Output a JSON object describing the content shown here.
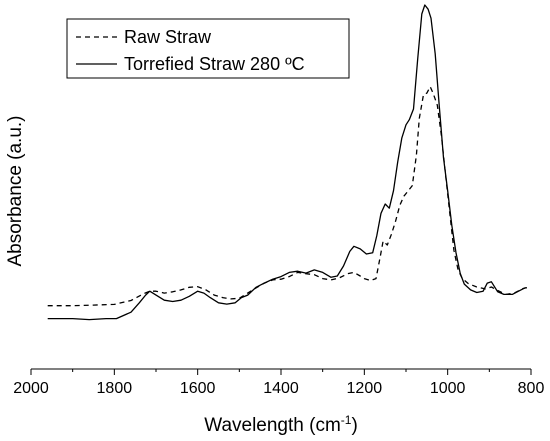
{
  "chart_data": {
    "type": "line",
    "title": "",
    "xlabel": "Wavelength (cm",
    "xlabel_sup": "-1",
    "xlabel_close": ")",
    "ylabel": "Absorbance (a.u.)",
    "xlim": [
      2000,
      800
    ],
    "x_reversed": true,
    "ylim": [
      0,
      1
    ],
    "y_ticks_shown": false,
    "grid": false,
    "legend_position": "top-left",
    "x_ticks": [
      2000,
      1800,
      1600,
      1400,
      1200,
      1000,
      800
    ],
    "x_tick_labels": [
      "2000",
      "1800",
      "1600",
      "1400",
      "1200",
      "1000",
      "800"
    ],
    "series": [
      {
        "name": "Raw Straw",
        "line_style": "dashed",
        "color": "#000000",
        "points": [
          [
            1960,
            0.069
          ],
          [
            1900,
            0.069
          ],
          [
            1850,
            0.071
          ],
          [
            1800,
            0.073
          ],
          [
            1760,
            0.085
          ],
          [
            1730,
            0.106
          ],
          [
            1715,
            0.114
          ],
          [
            1700,
            0.114
          ],
          [
            1680,
            0.108
          ],
          [
            1660,
            0.112
          ],
          [
            1640,
            0.118
          ],
          [
            1620,
            0.126
          ],
          [
            1600,
            0.128
          ],
          [
            1580,
            0.118
          ],
          [
            1560,
            0.102
          ],
          [
            1540,
            0.094
          ],
          [
            1520,
            0.09
          ],
          [
            1500,
            0.092
          ],
          [
            1480,
            0.108
          ],
          [
            1460,
            0.124
          ],
          [
            1440,
            0.139
          ],
          [
            1420,
            0.149
          ],
          [
            1400,
            0.151
          ],
          [
            1380,
            0.159
          ],
          [
            1360,
            0.172
          ],
          [
            1340,
            0.168
          ],
          [
            1320,
            0.165
          ],
          [
            1300,
            0.153
          ],
          [
            1280,
            0.149
          ],
          [
            1260,
            0.155
          ],
          [
            1240,
            0.168
          ],
          [
            1225,
            0.172
          ],
          [
            1210,
            0.161
          ],
          [
            1200,
            0.153
          ],
          [
            1185,
            0.147
          ],
          [
            1172,
            0.153
          ],
          [
            1162,
            0.22
          ],
          [
            1155,
            0.269
          ],
          [
            1145,
            0.257
          ],
          [
            1135,
            0.29
          ],
          [
            1125,
            0.331
          ],
          [
            1115,
            0.38
          ],
          [
            1105,
            0.408
          ],
          [
            1095,
            0.424
          ],
          [
            1085,
            0.441
          ],
          [
            1075,
            0.535
          ],
          [
            1068,
            0.649
          ],
          [
            1058,
            0.723
          ],
          [
            1050,
            0.727
          ],
          [
            1042,
            0.747
          ],
          [
            1035,
            0.727
          ],
          [
            1025,
            0.69
          ],
          [
            1015,
            0.596
          ],
          [
            1005,
            0.473
          ],
          [
            995,
            0.355
          ],
          [
            985,
            0.241
          ],
          [
            975,
            0.18
          ],
          [
            965,
            0.153
          ],
          [
            950,
            0.137
          ],
          [
            930,
            0.127
          ],
          [
            910,
            0.121
          ],
          [
            895,
            0.127
          ],
          [
            880,
            0.116
          ],
          [
            860,
            0.104
          ],
          [
            840,
            0.108
          ],
          [
            820,
            0.122
          ],
          [
            810,
            0.125
          ]
        ]
      },
      {
        "name": "Torrefied Straw 280 ºC",
        "line_style": "solid",
        "color": "#000000",
        "points": [
          [
            1960,
            0.029
          ],
          [
            1900,
            0.029
          ],
          [
            1860,
            0.026
          ],
          [
            1820,
            0.029
          ],
          [
            1795,
            0.029
          ],
          [
            1760,
            0.049
          ],
          [
            1740,
            0.078
          ],
          [
            1725,
            0.102
          ],
          [
            1715,
            0.114
          ],
          [
            1700,
            0.102
          ],
          [
            1680,
            0.086
          ],
          [
            1660,
            0.082
          ],
          [
            1640,
            0.086
          ],
          [
            1620,
            0.098
          ],
          [
            1600,
            0.114
          ],
          [
            1585,
            0.108
          ],
          [
            1570,
            0.094
          ],
          [
            1550,
            0.078
          ],
          [
            1530,
            0.074
          ],
          [
            1510,
            0.078
          ],
          [
            1495,
            0.094
          ],
          [
            1480,
            0.102
          ],
          [
            1460,
            0.126
          ],
          [
            1440,
            0.139
          ],
          [
            1420,
            0.151
          ],
          [
            1400,
            0.159
          ],
          [
            1380,
            0.172
          ],
          [
            1360,
            0.176
          ],
          [
            1340,
            0.17
          ],
          [
            1320,
            0.18
          ],
          [
            1300,
            0.172
          ],
          [
            1280,
            0.157
          ],
          [
            1265,
            0.161
          ],
          [
            1250,
            0.192
          ],
          [
            1235,
            0.237
          ],
          [
            1225,
            0.253
          ],
          [
            1210,
            0.245
          ],
          [
            1195,
            0.229
          ],
          [
            1180,
            0.233
          ],
          [
            1170,
            0.286
          ],
          [
            1160,
            0.355
          ],
          [
            1150,
            0.384
          ],
          [
            1140,
            0.371
          ],
          [
            1130,
            0.425
          ],
          [
            1120,
            0.514
          ],
          [
            1110,
            0.588
          ],
          [
            1100,
            0.629
          ],
          [
            1092,
            0.645
          ],
          [
            1082,
            0.678
          ],
          [
            1072,
            0.833
          ],
          [
            1062,
            0.972
          ],
          [
            1055,
            1.0
          ],
          [
            1047,
            0.987
          ],
          [
            1040,
            0.959
          ],
          [
            1030,
            0.849
          ],
          [
            1020,
            0.686
          ],
          [
            1010,
            0.527
          ],
          [
            1000,
            0.424
          ],
          [
            990,
            0.318
          ],
          [
            980,
            0.233
          ],
          [
            970,
            0.169
          ],
          [
            960,
            0.136
          ],
          [
            945,
            0.118
          ],
          [
            930,
            0.11
          ],
          [
            915,
            0.114
          ],
          [
            905,
            0.139
          ],
          [
            895,
            0.143
          ],
          [
            880,
            0.112
          ],
          [
            865,
            0.104
          ],
          [
            845,
            0.104
          ],
          [
            830,
            0.114
          ],
          [
            815,
            0.124
          ],
          [
            810,
            0.124
          ]
        ]
      }
    ]
  }
}
